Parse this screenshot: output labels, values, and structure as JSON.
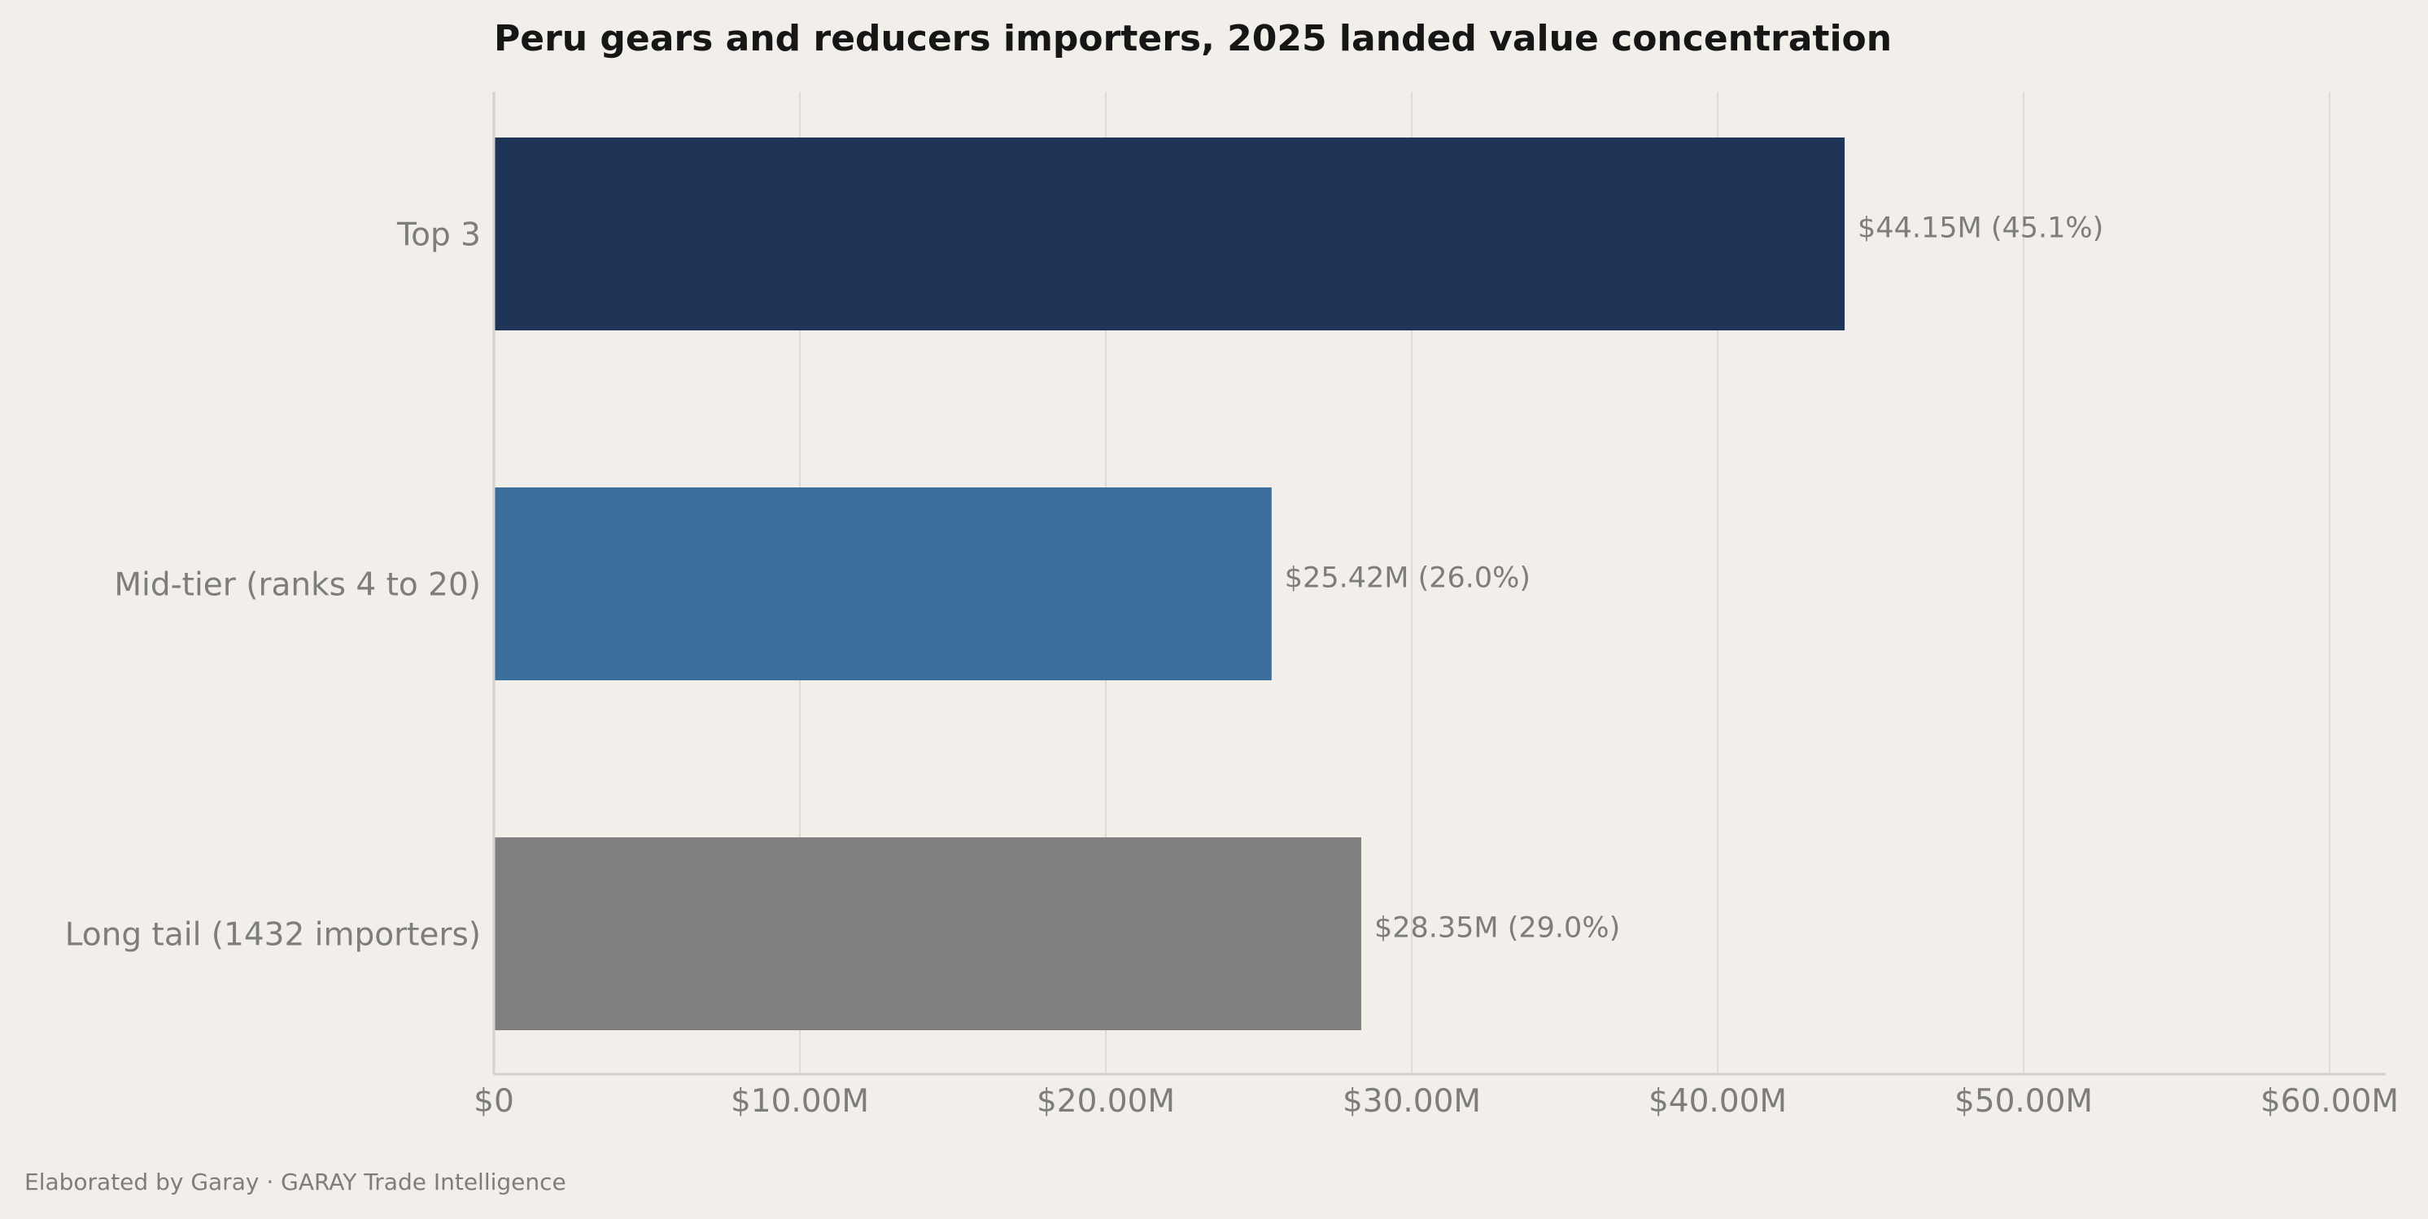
{
  "chart_data": {
    "type": "bar",
    "orientation": "horizontal",
    "title": "Peru gears and reducers importers, 2025 landed value concentration",
    "categories": [
      "Top 3",
      "Mid-tier (ranks 4 to 20)",
      "Long tail (1432 importers)"
    ],
    "values": [
      44.15,
      25.42,
      28.35
    ],
    "value_labels": [
      "$44.15M  (45.1%)",
      "$25.42M  (26.0%)",
      "$28.35M  (29.0%)"
    ],
    "colors": [
      "#1e3557",
      "#3b6e9b",
      "#808080"
    ],
    "xlim": [
      0,
      62
    ],
    "x_ticks": [
      0,
      10,
      20,
      30,
      40,
      50,
      60
    ],
    "x_tick_labels": [
      "$0",
      "$10.00M",
      "$20.00M",
      "$30.00M",
      "$40.00M",
      "$50.00M",
      "$60.00M"
    ],
    "grid": "vertical",
    "legend": "none"
  },
  "footer": {
    "text": "Elaborated by Garay  ·  GARAY Trade Intelligence"
  }
}
